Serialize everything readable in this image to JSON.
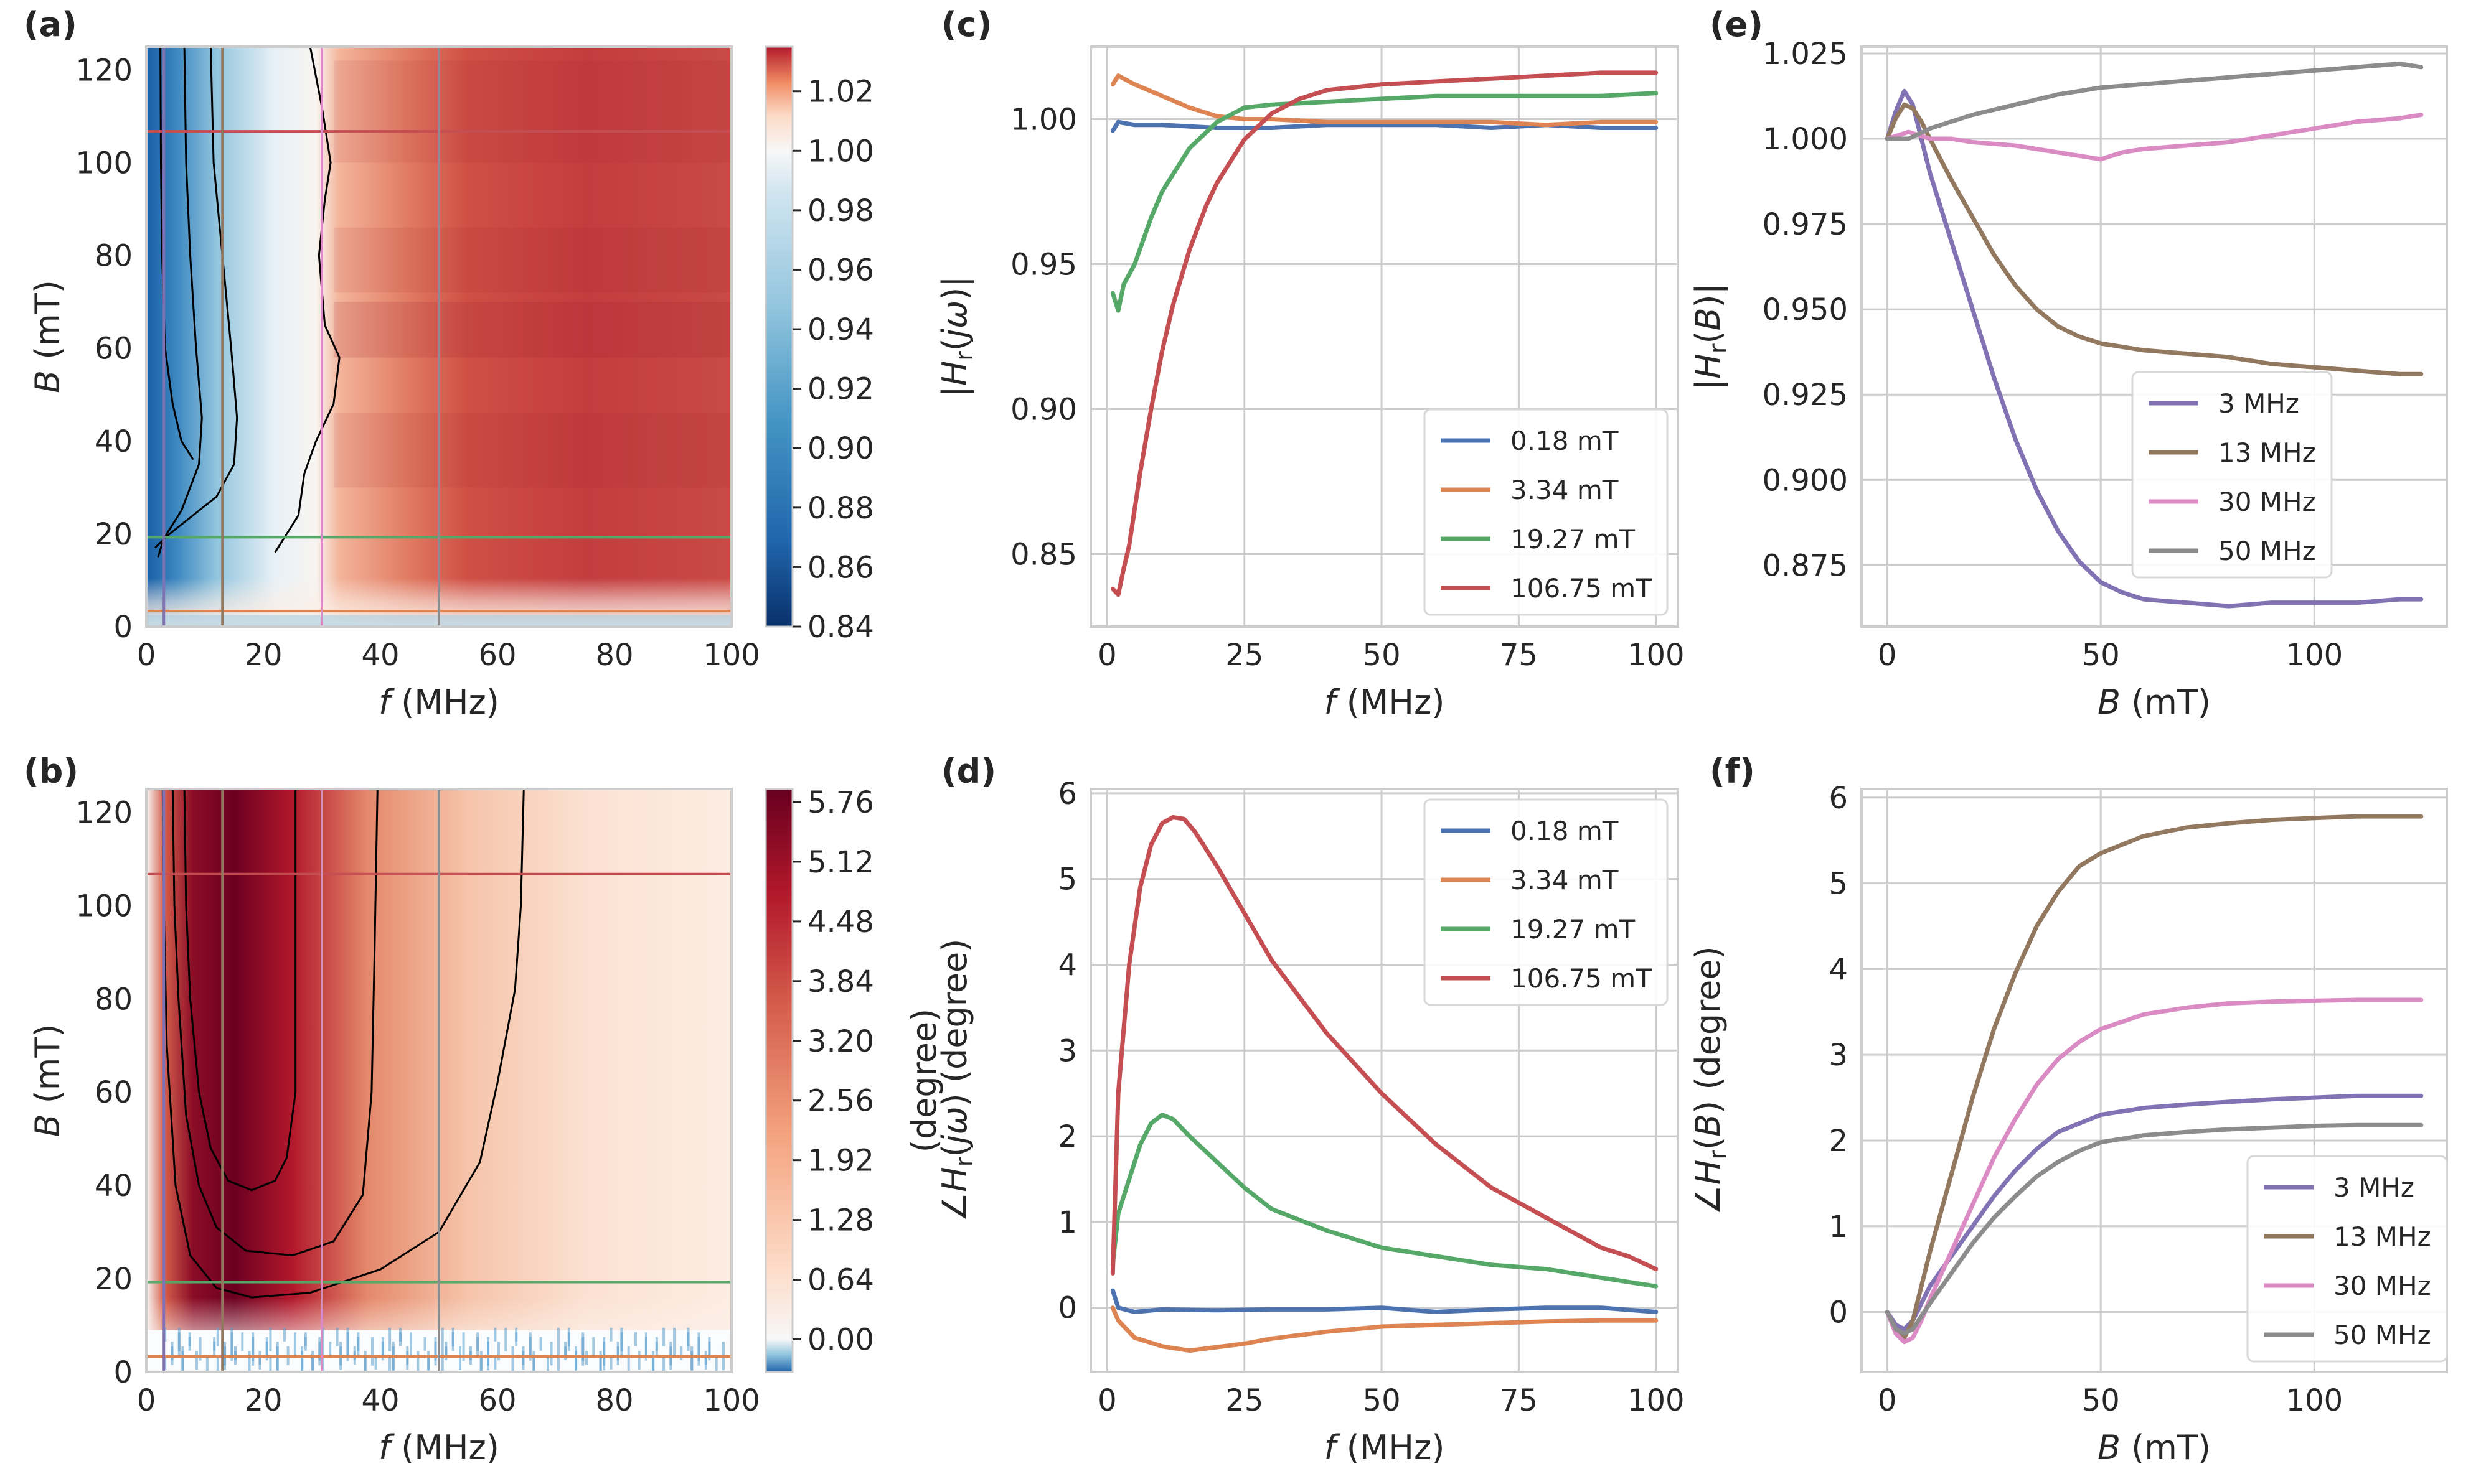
{
  "figure": {
    "panel_letters": [
      "(a)",
      "(b)",
      "(c)",
      "(d)",
      "(e)",
      "(f)"
    ]
  },
  "chart_data": [
    {
      "panel": "(a)",
      "type": "heatmap",
      "title": "",
      "xlabel_symbol": "f",
      "xlabel_unit": " (MHz)",
      "ylabel_symbol": "B",
      "ylabel_unit": " (mT)",
      "xlim": [
        0,
        100
      ],
      "ylim": [
        0,
        125
      ],
      "xticks": [
        0,
        20,
        40,
        60,
        80,
        100
      ],
      "yticks": [
        0,
        20,
        40,
        60,
        80,
        100,
        120
      ],
      "colormap": "RdBu_r",
      "colorbar": {
        "range": [
          0.84,
          1.035
        ],
        "ticks": [
          "1.02",
          "1.00",
          "0.98",
          "0.96",
          "0.94",
          "0.92",
          "0.90",
          "0.88",
          "0.86",
          "0.84"
        ],
        "tick_values": [
          1.02,
          1.0,
          0.98,
          0.96,
          0.94,
          0.92,
          0.9,
          0.88,
          0.86,
          0.84
        ],
        "label": ""
      },
      "overlay_lines": {
        "vertical_f_MHz": [
          3,
          13,
          30,
          50
        ],
        "horizontal_B_mT": [
          3.34,
          19.27,
          106.75
        ]
      }
    },
    {
      "panel": "(b)",
      "type": "heatmap",
      "title": "",
      "xlabel_symbol": "f",
      "xlabel_unit": " (MHz)",
      "ylabel_symbol": "B",
      "ylabel_unit": " (mT)",
      "xlim": [
        0,
        100
      ],
      "ylim": [
        0,
        125
      ],
      "xticks": [
        0,
        20,
        40,
        60,
        80,
        100
      ],
      "yticks": [
        0,
        20,
        40,
        60,
        80,
        100,
        120
      ],
      "colormap": "RdBu_r",
      "colorbar": {
        "range": [
          -0.35,
          5.9
        ],
        "ticks": [
          "5.76",
          "5.12",
          "4.48",
          "3.84",
          "3.20",
          "2.56",
          "1.92",
          "1.28",
          "0.64",
          "0.00"
        ],
        "tick_values": [
          5.76,
          5.12,
          4.48,
          3.84,
          3.2,
          2.56,
          1.92,
          1.28,
          0.64,
          0.0
        ],
        "label": "(degree)"
      },
      "overlay_lines": {
        "vertical_f_MHz": [
          3,
          13,
          30,
          50
        ],
        "horizontal_B_mT": [
          3.34,
          19.27,
          106.75
        ]
      }
    },
    {
      "panel": "(c)",
      "type": "line",
      "title": "",
      "xlabel_symbol": "f",
      "xlabel_unit": " (MHz)",
      "ylabel": "|H_r(jω)|",
      "xlim": [
        -3,
        104
      ],
      "ylim": [
        0.825,
        1.025
      ],
      "xticks": [
        0,
        25,
        50,
        75,
        100
      ],
      "yticks": [
        "0.85",
        "0.90",
        "0.95",
        "1.00"
      ],
      "ytick_values": [
        0.85,
        0.9,
        0.95,
        1.0
      ],
      "legend_position": "lower-right",
      "series": [
        {
          "name": "0.18 mT",
          "color": "#4c72b0",
          "x": [
            1,
            2,
            5,
            10,
            20,
            30,
            40,
            50,
            60,
            70,
            80,
            90,
            100
          ],
          "y": [
            0.996,
            0.999,
            0.998,
            0.998,
            0.997,
            0.997,
            0.998,
            0.998,
            0.998,
            0.997,
            0.998,
            0.997,
            0.997
          ]
        },
        {
          "name": "3.34 mT",
          "color": "#dd8452",
          "x": [
            1,
            2,
            5,
            10,
            15,
            20,
            25,
            30,
            40,
            50,
            60,
            70,
            80,
            90,
            100
          ],
          "y": [
            1.012,
            1.015,
            1.012,
            1.008,
            1.004,
            1.001,
            1.0,
            1.0,
            0.999,
            0.999,
            0.999,
            0.999,
            0.998,
            0.999,
            0.999
          ]
        },
        {
          "name": "19.27 mT",
          "color": "#55a868",
          "x": [
            1,
            2,
            3,
            5,
            8,
            10,
            15,
            20,
            25,
            30,
            40,
            50,
            60,
            70,
            80,
            90,
            100
          ],
          "y": [
            0.94,
            0.934,
            0.943,
            0.95,
            0.966,
            0.975,
            0.99,
            0.999,
            1.004,
            1.005,
            1.006,
            1.007,
            1.008,
            1.008,
            1.008,
            1.008,
            1.009
          ]
        },
        {
          "name": "106.75 mT",
          "color": "#c44e52",
          "x": [
            1,
            2,
            3,
            4,
            6,
            8,
            10,
            12,
            15,
            18,
            20,
            25,
            30,
            35,
            40,
            50,
            60,
            70,
            80,
            90,
            100
          ],
          "y": [
            0.838,
            0.836,
            0.845,
            0.853,
            0.878,
            0.9,
            0.92,
            0.936,
            0.955,
            0.97,
            0.978,
            0.993,
            1.002,
            1.007,
            1.01,
            1.012,
            1.013,
            1.014,
            1.015,
            1.016,
            1.016
          ]
        }
      ]
    },
    {
      "panel": "(d)",
      "type": "line",
      "title": "",
      "xlabel_symbol": "f",
      "xlabel_unit": " (MHz)",
      "ylabel": "∠H_r(jω) (degree)",
      "xlim": [
        -3,
        104
      ],
      "ylim": [
        -0.75,
        6.05
      ],
      "xticks": [
        0,
        25,
        50,
        75,
        100
      ],
      "yticks": [
        0,
        1,
        2,
        3,
        4,
        5,
        6
      ],
      "legend_position": "upper-right",
      "series": [
        {
          "name": "0.18 mT",
          "color": "#4c72b0",
          "x": [
            1,
            2,
            5,
            10,
            20,
            30,
            40,
            50,
            60,
            70,
            80,
            90,
            100
          ],
          "y": [
            0.2,
            0.0,
            -0.05,
            -0.02,
            -0.03,
            -0.02,
            -0.02,
            0.0,
            -0.05,
            -0.02,
            0.0,
            0.0,
            -0.05
          ]
        },
        {
          "name": "3.34 mT",
          "color": "#dd8452",
          "x": [
            1,
            2,
            5,
            10,
            15,
            20,
            25,
            30,
            40,
            50,
            60,
            70,
            80,
            90,
            100
          ],
          "y": [
            0.0,
            -0.15,
            -0.35,
            -0.45,
            -0.5,
            -0.46,
            -0.42,
            -0.36,
            -0.28,
            -0.22,
            -0.2,
            -0.18,
            -0.16,
            -0.15,
            -0.15
          ]
        },
        {
          "name": "19.27 mT",
          "color": "#55a868",
          "x": [
            1,
            2,
            4,
            6,
            8,
            10,
            12,
            15,
            20,
            25,
            30,
            40,
            50,
            60,
            70,
            80,
            90,
            100
          ],
          "y": [
            0.5,
            1.1,
            1.5,
            1.9,
            2.15,
            2.25,
            2.2,
            2.0,
            1.7,
            1.4,
            1.15,
            0.9,
            0.7,
            0.6,
            0.5,
            0.45,
            0.35,
            0.25
          ]
        },
        {
          "name": "106.75 mT",
          "color": "#c44e52",
          "x": [
            1,
            2,
            4,
            6,
            8,
            10,
            12,
            14,
            16,
            20,
            25,
            30,
            40,
            50,
            60,
            70,
            80,
            90,
            95,
            100
          ],
          "y": [
            0.4,
            2.5,
            4.0,
            4.9,
            5.4,
            5.65,
            5.72,
            5.7,
            5.55,
            5.15,
            4.6,
            4.05,
            3.2,
            2.5,
            1.9,
            1.4,
            1.05,
            0.7,
            0.6,
            0.45
          ]
        }
      ]
    },
    {
      "panel": "(e)",
      "type": "line",
      "title": "",
      "xlabel_symbol": "B",
      "xlabel_unit": " (mT)",
      "ylabel": "|H_r(B)|",
      "xlim": [
        -6,
        131
      ],
      "ylim": [
        0.857,
        1.027
      ],
      "xticks": [
        0,
        50,
        100
      ],
      "yticks": [
        "0.875",
        "0.900",
        "0.925",
        "0.950",
        "0.975",
        "1.000",
        "1.025"
      ],
      "ytick_values": [
        0.875,
        0.9,
        0.925,
        0.95,
        0.975,
        1.0,
        1.025
      ],
      "legend_position": "center-right",
      "series": [
        {
          "name": "3 MHz",
          "color": "#8172b3",
          "x": [
            0,
            2,
            4,
            6,
            8,
            10,
            15,
            20,
            25,
            30,
            35,
            40,
            45,
            50,
            55,
            60,
            70,
            80,
            90,
            100,
            110,
            120,
            125
          ],
          "y": [
            1.0,
            1.008,
            1.014,
            1.01,
            1.0,
            0.99,
            0.97,
            0.95,
            0.93,
            0.912,
            0.897,
            0.885,
            0.876,
            0.87,
            0.867,
            0.865,
            0.864,
            0.863,
            0.864,
            0.864,
            0.864,
            0.865,
            0.865
          ]
        },
        {
          "name": "13 MHz",
          "color": "#937860",
          "x": [
            0,
            2,
            4,
            6,
            8,
            10,
            15,
            20,
            25,
            30,
            35,
            40,
            45,
            50,
            60,
            70,
            80,
            90,
            100,
            110,
            120,
            125
          ],
          "y": [
            1.0,
            1.006,
            1.01,
            1.009,
            1.005,
            1.0,
            0.988,
            0.977,
            0.966,
            0.957,
            0.95,
            0.945,
            0.942,
            0.94,
            0.938,
            0.937,
            0.936,
            0.934,
            0.933,
            0.932,
            0.931,
            0.931
          ]
        },
        {
          "name": "30 MHz",
          "color": "#da8bc3",
          "x": [
            0,
            5,
            10,
            15,
            20,
            30,
            40,
            45,
            50,
            55,
            60,
            70,
            80,
            90,
            100,
            110,
            120,
            125
          ],
          "y": [
            1.0,
            1.002,
            1.0,
            1.0,
            0.999,
            0.998,
            0.996,
            0.995,
            0.994,
            0.996,
            0.997,
            0.998,
            0.999,
            1.001,
            1.003,
            1.005,
            1.006,
            1.007
          ]
        },
        {
          "name": "50 MHz",
          "color": "#8c8c8c",
          "x": [
            0,
            5,
            10,
            20,
            30,
            40,
            50,
            60,
            70,
            80,
            90,
            100,
            110,
            120,
            125
          ],
          "y": [
            1.0,
            1.0,
            1.003,
            1.007,
            1.01,
            1.013,
            1.015,
            1.016,
            1.017,
            1.018,
            1.019,
            1.02,
            1.021,
            1.022,
            1.021
          ]
        }
      ]
    },
    {
      "panel": "(f)",
      "type": "line",
      "title": "",
      "xlabel_symbol": "B",
      "xlabel_unit": " (mT)",
      "ylabel": "∠H_r(B) (degree)",
      "xlim": [
        -6,
        131
      ],
      "ylim": [
        -0.7,
        6.1
      ],
      "xticks": [
        0,
        50,
        100
      ],
      "yticks": [
        0,
        1,
        2,
        3,
        4,
        5,
        6
      ],
      "legend_position": "lower-right",
      "series": [
        {
          "name": "3 MHz",
          "color": "#8172b3",
          "x": [
            0,
            2,
            4,
            6,
            8,
            10,
            15,
            20,
            25,
            30,
            35,
            40,
            50,
            60,
            70,
            80,
            90,
            100,
            110,
            120,
            125
          ],
          "y": [
            0.0,
            -0.15,
            -0.2,
            -0.1,
            0.1,
            0.3,
            0.65,
            1.0,
            1.35,
            1.65,
            1.9,
            2.1,
            2.3,
            2.38,
            2.42,
            2.45,
            2.48,
            2.5,
            2.52,
            2.52,
            2.52
          ]
        },
        {
          "name": "13 MHz",
          "color": "#937860",
          "x": [
            0,
            2,
            4,
            6,
            8,
            10,
            15,
            20,
            25,
            30,
            35,
            40,
            45,
            50,
            60,
            70,
            80,
            90,
            100,
            110,
            120,
            125
          ],
          "y": [
            0.0,
            -0.2,
            -0.3,
            -0.1,
            0.3,
            0.7,
            1.6,
            2.5,
            3.3,
            3.95,
            4.5,
            4.9,
            5.2,
            5.35,
            5.55,
            5.65,
            5.7,
            5.74,
            5.76,
            5.78,
            5.78,
            5.78
          ]
        },
        {
          "name": "30 MHz",
          "color": "#da8bc3",
          "x": [
            0,
            2,
            4,
            6,
            8,
            10,
            15,
            20,
            25,
            30,
            35,
            40,
            45,
            50,
            60,
            70,
            80,
            90,
            100,
            110,
            120,
            125
          ],
          "y": [
            0.0,
            -0.25,
            -0.35,
            -0.3,
            -0.1,
            0.15,
            0.7,
            1.25,
            1.8,
            2.25,
            2.65,
            2.95,
            3.15,
            3.3,
            3.47,
            3.55,
            3.6,
            3.62,
            3.63,
            3.64,
            3.64,
            3.64
          ]
        },
        {
          "name": "50 MHz",
          "color": "#8c8c8c",
          "x": [
            0,
            2,
            4,
            6,
            8,
            10,
            15,
            20,
            25,
            30,
            35,
            40,
            45,
            50,
            60,
            70,
            80,
            90,
            100,
            110,
            120,
            125
          ],
          "y": [
            0.0,
            -0.2,
            -0.25,
            -0.2,
            -0.05,
            0.1,
            0.45,
            0.8,
            1.1,
            1.35,
            1.58,
            1.75,
            1.88,
            1.98,
            2.06,
            2.1,
            2.13,
            2.15,
            2.17,
            2.18,
            2.18,
            2.18
          ]
        }
      ]
    }
  ]
}
